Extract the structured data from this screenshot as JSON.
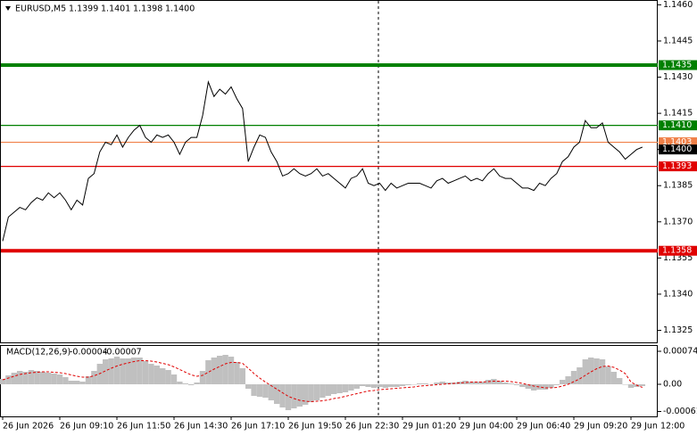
{
  "chart_data": [
    {
      "type": "line",
      "title": "EURUSD,M5",
      "header_values": [
        "1.1399",
        "1.1401",
        "1.1398",
        "1.1400"
      ],
      "color": "#000000",
      "values": [
        1.1362,
        1.1372,
        1.1374,
        1.1376,
        1.1375,
        1.1378,
        1.138,
        1.1379,
        1.1382,
        1.138,
        1.1382,
        1.1379,
        1.1375,
        1.1379,
        1.1377,
        1.1388,
        1.139,
        1.1399,
        1.1403,
        1.1402,
        1.1406,
        1.1401,
        1.1405,
        1.1408,
        1.141,
        1.1405,
        1.1403,
        1.1406,
        1.1405,
        1.1406,
        1.1403,
        1.1398,
        1.1403,
        1.1405,
        1.1405,
        1.1414,
        1.1428,
        1.1422,
        1.1425,
        1.1423,
        1.1426,
        1.1421,
        1.1417,
        1.1395,
        1.1401,
        1.1406,
        1.1405,
        1.1399,
        1.1395,
        1.1389,
        1.139,
        1.1392,
        1.139,
        1.1389,
        1.139,
        1.1392,
        1.1389,
        1.139,
        1.1388,
        1.1386,
        1.1384,
        1.1388,
        1.1389,
        1.1392,
        1.1386,
        1.1385,
        1.1386,
        1.1383,
        1.1386,
        1.1384,
        1.1385,
        1.1386,
        1.1386,
        1.1386,
        1.1385,
        1.1384,
        1.1387,
        1.1388,
        1.1386,
        1.1387,
        1.1388,
        1.1389,
        1.1387,
        1.1388,
        1.1387,
        1.139,
        1.1392,
        1.1389,
        1.1388,
        1.1388,
        1.1386,
        1.1384,
        1.1384,
        1.1383,
        1.1386,
        1.1385,
        1.1388,
        1.139,
        1.1395,
        1.1397,
        1.1401,
        1.1403,
        1.1412,
        1.1409,
        1.1409,
        1.1411,
        1.1403,
        1.1401,
        1.1399,
        1.1396,
        1.1398,
        1.14,
        1.1401
      ],
      "ylim": [
        1.132,
        1.1462
      ],
      "yticks": [
        {
          "value": 1.146,
          "label": "1.1460"
        },
        1.1445,
        {
          "value": 1.143,
          "label": "1.1430"
        },
        1.1415,
        {
          "value": 1.14,
          "label": "1.1400"
        },
        1.1385,
        {
          "value": 1.137,
          "label": "1.1370"
        },
        1.1355,
        {
          "value": 1.134,
          "label": "1.1340"
        },
        1.1325
      ],
      "levels": [
        {
          "value": 1.1435,
          "color": "#008000",
          "thick": true,
          "line": true
        },
        {
          "value": 1.141,
          "label": "1.1410",
          "color": "#008000",
          "thick": false,
          "line": true
        },
        {
          "value": 1.1403,
          "color": "#f08048",
          "thick": false,
          "line": true
        },
        {
          "value": 1.14,
          "label": "1.1400",
          "color": "#000000",
          "thick": false,
          "line": false
        },
        {
          "value": 1.1393,
          "color": "#e00000",
          "thick": false,
          "line": true
        },
        {
          "value": 1.1358,
          "color": "#e00000",
          "thick": true,
          "line": true
        }
      ]
    },
    {
      "type": "macd",
      "title": "MACD(12,26,9)",
      "categories": [
        "26 Jun 2026",
        null,
        null,
        null,
        null,
        null,
        null,
        null,
        null,
        null,
        "26 Jun 09:10",
        null,
        null,
        null,
        null,
        null,
        null,
        null,
        null,
        null,
        "26 Jun 11:50",
        null,
        null,
        null,
        null,
        null,
        null,
        null,
        null,
        null,
        "26 Jun 14:30",
        null,
        null,
        null,
        null,
        null,
        null,
        null,
        null,
        null,
        "26 Jun 17:10",
        null,
        null,
        null,
        null,
        null,
        null,
        null,
        null,
        null,
        "26 Jun 19:50",
        null,
        null,
        null,
        null,
        null,
        null,
        null,
        null,
        null,
        "26 Jun 22:30",
        null,
        null,
        null,
        null,
        null,
        null,
        null,
        null,
        null,
        "29 Jun 01:20",
        null,
        null,
        null,
        null,
        null,
        null,
        null,
        null,
        null,
        "29 Jun 04:00",
        null,
        null,
        null,
        null,
        null,
        null,
        null,
        null,
        null,
        "29 Jun 06:40",
        null,
        null,
        null,
        null,
        null,
        null,
        null,
        null,
        null,
        "29 Jun 09:20",
        null,
        null,
        null,
        null,
        null,
        null,
        null,
        null,
        null,
        "29 Jun 12:00",
        null,
        null
      ],
      "series": [
        {
          "color": "#c0c0c0",
          "values": [
            0.00012,
            0.0002,
            0.00026,
            0.0003,
            0.00028,
            0.00032,
            0.0003,
            0.00028,
            0.00026,
            0.00024,
            0.00022,
            0.00016,
            8e-05,
            8e-05,
            6e-05,
            0.00018,
            0.0003,
            0.00046,
            0.00056,
            0.00058,
            0.00062,
            0.00058,
            0.00058,
            0.0006,
            0.0006,
            0.00052,
            0.00046,
            0.00042,
            0.00036,
            0.00032,
            0.00022,
            6e-05,
            2e-05,
            -2e-05,
            4e-05,
            0.0003,
            0.00054,
            0.0006,
            0.00064,
            0.00066,
            0.00062,
            0.0005,
            0.00036,
            -0.0001,
            -0.00026,
            -0.00028,
            -0.0003,
            -0.00036,
            -0.00044,
            -0.00052,
            -0.00058,
            -0.00054,
            -0.0005,
            -0.00046,
            -0.0004,
            -0.00036,
            -0.0003,
            -0.00026,
            -0.00022,
            -0.0002,
            -0.00018,
            -0.00014,
            -0.0001,
            -4e-05,
            -6e-05,
            -8e-05,
            -6e-05,
            -8e-05,
            -6e-05,
            -6e-05,
            -4e-05,
            -2e-05,
            0,
            2e-05,
            2e-05,
            0,
            4e-05,
            6e-05,
            4e-05,
            4e-05,
            6e-05,
            8e-05,
            6e-05,
            6e-05,
            6e-05,
            0.0001,
            0.00012,
            8e-05,
            4e-05,
            2e-05,
            -2e-05,
            -6e-05,
            -0.0001,
            -0.00014,
            -0.00012,
            -0.00012,
            -8e-05,
            -2e-05,
            0.0001,
            0.00018,
            0.0003,
            0.00038,
            0.00056,
            0.0006,
            0.00058,
            0.00056,
            0.0004,
            0.00028,
            0.00014,
            0,
            -8e-05,
            -6e-05,
            -4e-05
          ]
        },
        {
          "color": "#e00000",
          "values": [
            0.0001,
            0.00014,
            0.00018,
            0.00022,
            0.00024,
            0.00026,
            0.00027,
            0.00028,
            0.00028,
            0.00027,
            0.00026,
            0.00024,
            0.00021,
            0.00018,
            0.00016,
            0.00016,
            0.00019,
            0.00024,
            0.0003,
            0.00036,
            0.00041,
            0.00045,
            0.00048,
            0.00051,
            0.00053,
            0.00053,
            0.00052,
            0.0005,
            0.00047,
            0.00044,
            0.00039,
            0.00033,
            0.00027,
            0.00021,
            0.00018,
            0.0002,
            0.00027,
            0.00034,
            0.0004,
            0.00046,
            0.00049,
            0.00049,
            0.00047,
            0.00036,
            0.00024,
            0.00014,
            5e-05,
            -3e-05,
            -0.00011,
            -0.00019,
            -0.00027,
            -0.00032,
            -0.00036,
            -0.00038,
            -0.00039,
            -0.00038,
            -0.00037,
            -0.00035,
            -0.00032,
            -0.0003,
            -0.00027,
            -0.00024,
            -0.00021,
            -0.00018,
            -0.00015,
            -0.00014,
            -0.00012,
            -0.00011,
            -0.0001,
            -9e-05,
            -8e-05,
            -7e-05,
            -6e-05,
            -4e-05,
            -3e-05,
            -2e-05,
            -1e-05,
            0,
            1e-05,
            2e-05,
            3e-05,
            4e-05,
            5e-05,
            5e-05,
            5e-05,
            6e-05,
            7e-05,
            7e-05,
            7e-05,
            6e-05,
            4e-05,
            2e-05,
            -1e-05,
            -4e-05,
            -6e-05,
            -8e-05,
            -8e-05,
            -7e-05,
            -4e-05,
            0,
            6e-05,
            0.00012,
            0.0002,
            0.00028,
            0.00035,
            0.0004,
            0.00041,
            0.00038,
            0.00032,
            0.00024,
            5e-05,
            -2e-05,
            -7e-05
          ]
        }
      ],
      "ylim": [
        -0.00072,
        0.00088
      ],
      "yticks": [
        0.00074,
        {
          "value": 0,
          "label": "0.00"
        },
        -0.00061
      ]
    }
  ]
}
